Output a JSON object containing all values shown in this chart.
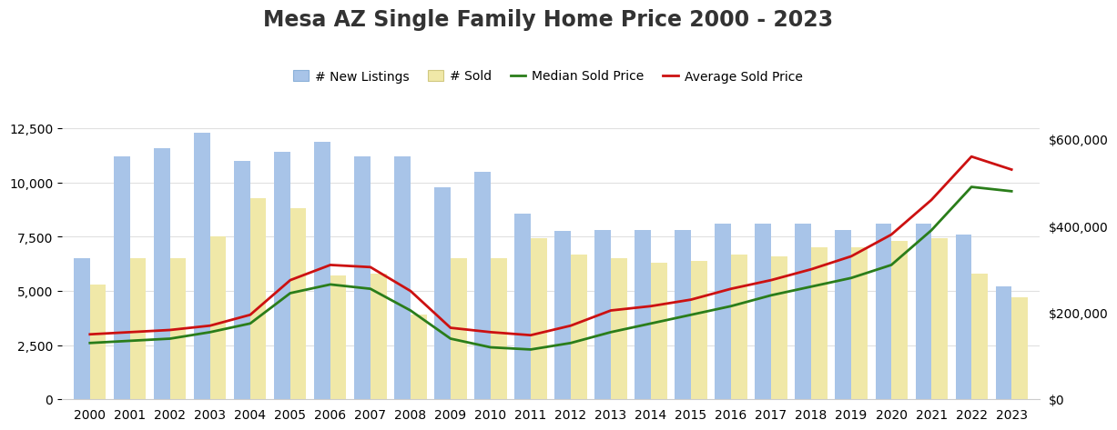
{
  "years": [
    2000,
    2001,
    2002,
    2003,
    2004,
    2005,
    2006,
    2007,
    2008,
    2009,
    2010,
    2011,
    2012,
    2013,
    2014,
    2015,
    2016,
    2017,
    2018,
    2019,
    2020,
    2021,
    2022,
    2023
  ],
  "new_listings": [
    6500,
    11200,
    11600,
    12300,
    11000,
    11400,
    11900,
    11200,
    11200,
    9800,
    10500,
    8550,
    7750,
    7800,
    7800,
    7800,
    8100,
    8100,
    8100,
    7800,
    8100,
    8100,
    7600,
    5200
  ],
  "sold": [
    5300,
    6500,
    6500,
    7500,
    9300,
    8800,
    5700,
    5800,
    3900,
    6500,
    6500,
    7450,
    6700,
    6500,
    6300,
    6400,
    6700,
    6600,
    7000,
    7000,
    7300,
    7450,
    5800,
    4700
  ],
  "median_sold_price": [
    130000,
    135000,
    140000,
    155000,
    175000,
    245000,
    265000,
    255000,
    205000,
    140000,
    120000,
    115000,
    130000,
    155000,
    175000,
    195000,
    215000,
    240000,
    260000,
    280000,
    310000,
    390000,
    490000,
    480000
  ],
  "avg_sold_price": [
    150000,
    155000,
    160000,
    170000,
    195000,
    275000,
    310000,
    305000,
    250000,
    165000,
    155000,
    148000,
    170000,
    205000,
    215000,
    230000,
    255000,
    275000,
    300000,
    330000,
    380000,
    460000,
    560000,
    530000
  ],
  "title": "Mesa AZ Single Family Home Price 2000 - 2023",
  "legend_labels": [
    "# New Listings",
    "# Sold",
    "Median Sold Price",
    "Average Sold Price"
  ],
  "bar_color_listings": "#a8c4e8",
  "bar_color_sold": "#f0e8a8",
  "line_color_median": "#2a7d1a",
  "line_color_avg": "#cc1111",
  "ylim_left": [
    0,
    13000
  ],
  "ylim_right": [
    0,
    650000
  ],
  "yticks_left": [
    0,
    2500,
    5000,
    7500,
    10000,
    12500
  ],
  "yticks_right": [
    0,
    200000,
    400000,
    600000
  ],
  "ytick_labels_right": [
    "$0",
    "$200,000",
    "$400,000",
    "$600,000"
  ],
  "background_color": "#ffffff",
  "title_fontsize": 17,
  "tick_fontsize": 10,
  "legend_fontsize": 10
}
